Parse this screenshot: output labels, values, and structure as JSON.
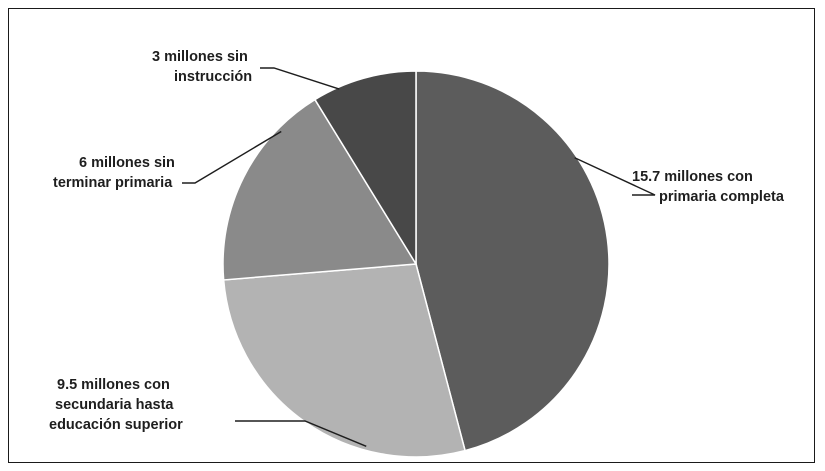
{
  "chart_data": {
    "type": "pie",
    "start_angle_deg": 0,
    "direction": "clockwise",
    "slices": [
      {
        "label_lines": [
          "15.7 millones con",
          "primaria completa"
        ],
        "value": 15.7,
        "color": "#5c5c5c"
      },
      {
        "label_lines": [
          "9.5 millones con",
          "secundaria hasta",
          "educación superior"
        ],
        "value": 9.5,
        "color": "#b3b3b3"
      },
      {
        "label_lines": [
          "6 millones sin",
          "terminar primaria"
        ],
        "value": 6,
        "color": "#8a8a8a"
      },
      {
        "label_lines": [
          "3 millones sin",
          "instrucción"
        ],
        "value": 3,
        "color": "#484848"
      }
    ]
  }
}
